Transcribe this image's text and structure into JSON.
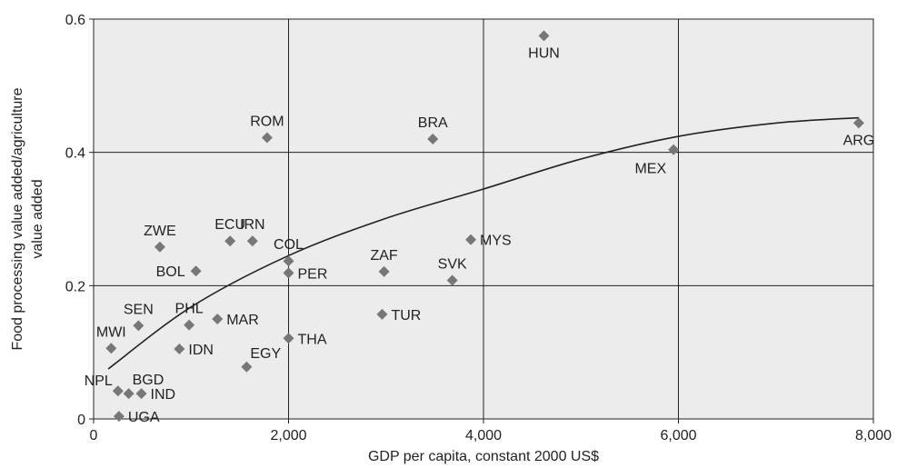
{
  "chart_data": {
    "type": "scatter",
    "title": "",
    "xlabel": "GDP per capita, constant 2000 US$",
    "ylabel": [
      "Food processing value added/agriculture",
      "value added"
    ],
    "xlim": [
      0,
      8000
    ],
    "ylim": [
      0,
      0.6
    ],
    "x_ticks": [
      0,
      2000,
      4000,
      6000,
      8000
    ],
    "x_tick_labels": [
      "0",
      "2,000",
      "4,000",
      "6,000",
      "8,000"
    ],
    "y_ticks": [
      0,
      0.2,
      0.4,
      0.6
    ],
    "y_tick_labels": [
      "0",
      "0.2",
      "0.4",
      "0.6"
    ],
    "grid": true,
    "marker_color": "#777777",
    "points": [
      {
        "label": "HUN",
        "x": 4620,
        "y": 0.575,
        "label_pos": "below"
      },
      {
        "label": "ROM",
        "x": 1780,
        "y": 0.422,
        "label_pos": "above"
      },
      {
        "label": "BRA",
        "x": 3480,
        "y": 0.42,
        "label_pos": "above"
      },
      {
        "label": "ARG",
        "x": 7850,
        "y": 0.444,
        "label_pos": "below"
      },
      {
        "label": "MEX",
        "x": 5950,
        "y": 0.404,
        "label_pos": "below-left"
      },
      {
        "label": "ZWE",
        "x": 680,
        "y": 0.258,
        "label_pos": "above"
      },
      {
        "label": "ECU",
        "x": 1400,
        "y": 0.267,
        "label_pos": "above"
      },
      {
        "label": "IRN",
        "x": 1630,
        "y": 0.267,
        "label_pos": "above"
      },
      {
        "label": "COL",
        "x": 2000,
        "y": 0.237,
        "label_pos": "above"
      },
      {
        "label": "PER",
        "x": 2000,
        "y": 0.219,
        "label_pos": "right"
      },
      {
        "label": "BOL",
        "x": 1050,
        "y": 0.222,
        "label_pos": "left"
      },
      {
        "label": "MYS",
        "x": 3870,
        "y": 0.269,
        "label_pos": "right"
      },
      {
        "label": "ZAF",
        "x": 2980,
        "y": 0.221,
        "label_pos": "above"
      },
      {
        "label": "SVK",
        "x": 3680,
        "y": 0.208,
        "label_pos": "above"
      },
      {
        "label": "SEN",
        "x": 460,
        "y": 0.14,
        "label_pos": "above"
      },
      {
        "label": "PHL",
        "x": 980,
        "y": 0.141,
        "label_pos": "above"
      },
      {
        "label": "MAR",
        "x": 1270,
        "y": 0.15,
        "label_pos": "right"
      },
      {
        "label": "TUR",
        "x": 2960,
        "y": 0.157,
        "label_pos": "right"
      },
      {
        "label": "THA",
        "x": 2000,
        "y": 0.121,
        "label_pos": "right"
      },
      {
        "label": "MWI",
        "x": 180,
        "y": 0.106,
        "label_pos": "above"
      },
      {
        "label": "IDN",
        "x": 880,
        "y": 0.105,
        "label_pos": "right"
      },
      {
        "label": "EGY",
        "x": 1570,
        "y": 0.078,
        "label_pos": "above-right"
      },
      {
        "label": "NPL",
        "x": 250,
        "y": 0.042,
        "label_pos": "above-left"
      },
      {
        "label": "BGD",
        "x": 360,
        "y": 0.038,
        "label_pos": "above-right"
      },
      {
        "label": "IND",
        "x": 490,
        "y": 0.038,
        "label_pos": "right"
      },
      {
        "label": "UGA",
        "x": 260,
        "y": 0.004,
        "label_pos": "right"
      }
    ],
    "trend_line": {
      "type": "quadratic",
      "x": [
        150,
        1000,
        2000,
        3000,
        4000,
        5000,
        6000,
        7000,
        7850
      ],
      "y": [
        0.075,
        0.168,
        0.245,
        0.301,
        0.345,
        0.39,
        0.424,
        0.444,
        0.452
      ]
    }
  }
}
